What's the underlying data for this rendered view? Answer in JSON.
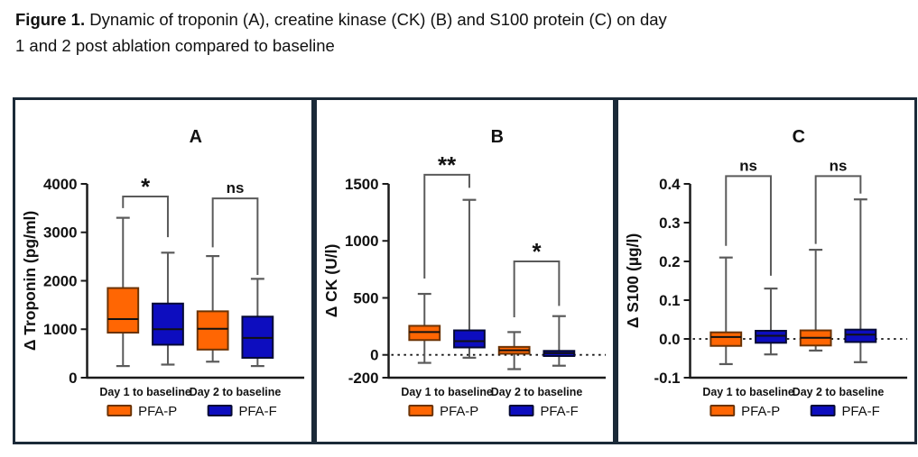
{
  "caption": {
    "bold": "Figure 1.",
    "line1_rest": " Dynamic of troponin (A), creatine kinase (CK) (B) and S100 protein (C) on day",
    "line2": "1 and 2 post ablation compared to baseline"
  },
  "legend": {
    "items": [
      {
        "label": "PFA-P",
        "fill": "#FF6603",
        "border": "#6b3305"
      },
      {
        "label": "PFA-F",
        "fill": "#0D0DBF",
        "border": "#060a34"
      }
    ]
  },
  "style": {
    "panel_border": "#1b2a38",
    "axis": "#1a1a1a",
    "whisker": "#5a5a5a",
    "bracket": "#5a5a5a",
    "median": "#111111",
    "zero_line": "#111111"
  },
  "chart_data": [
    {
      "type": "box",
      "panel_label": "A",
      "ylabel": "Δ Troponin (pg/ml)",
      "ylim": [
        0,
        4000
      ],
      "yticks": [
        {
          "v": 0,
          "label": "0"
        },
        {
          "v": 1000,
          "label": "1000"
        },
        {
          "v": 2000,
          "label": "2000"
        },
        {
          "v": 3000,
          "label": "3000"
        },
        {
          "v": 4000,
          "label": "4000"
        }
      ],
      "zero_line": false,
      "categories": [
        "Day 1 to baseline",
        "Day 2 to baseline"
      ],
      "series": [
        {
          "name": "PFA-P",
          "fill": "#FF6603",
          "border": "#6b3305",
          "boxes": [
            {
              "whislo": 240,
              "q1": 930,
              "med": 1210,
              "q3": 1850,
              "whishi": 3300
            },
            {
              "whislo": 330,
              "q1": 580,
              "med": 1010,
              "q3": 1370,
              "whishi": 2510
            }
          ]
        },
        {
          "name": "PFA-F",
          "fill": "#0D0DBF",
          "border": "#060a34",
          "boxes": [
            {
              "whislo": 270,
              "q1": 680,
              "med": 1000,
              "q3": 1530,
              "whishi": 2580
            },
            {
              "whislo": 240,
              "q1": 410,
              "med": 820,
              "q3": 1260,
              "whishi": 2040
            }
          ]
        }
      ],
      "significance": [
        {
          "category": 0,
          "label": "*",
          "top": 3740,
          "left_end": 3500,
          "right_end": 2900
        },
        {
          "category": 1,
          "label": "ns",
          "top": 3700,
          "left_end": 2690,
          "right_end": 2120
        }
      ]
    },
    {
      "type": "box",
      "panel_label": "B",
      "ylabel": "Δ CK (U/l)",
      "ylim": [
        -200,
        1500
      ],
      "yticks": [
        {
          "v": -200,
          "label": "-200"
        },
        {
          "v": 0,
          "label": "0"
        },
        {
          "v": 500,
          "label": "500"
        },
        {
          "v": 1000,
          "label": "1000"
        },
        {
          "v": 1500,
          "label": "1500"
        }
      ],
      "zero_line": true,
      "categories": [
        "Day 1 to baseline",
        "Day 2 to baseline"
      ],
      "series": [
        {
          "name": "PFA-P",
          "fill": "#FF6603",
          "border": "#6b3305",
          "boxes": [
            {
              "whislo": -70,
              "q1": 130,
              "med": 200,
              "q3": 255,
              "whishi": 535
            },
            {
              "whislo": -125,
              "q1": 10,
              "med": 40,
              "q3": 70,
              "whishi": 200
            }
          ]
        },
        {
          "name": "PFA-F",
          "fill": "#0D0DBF",
          "border": "#060a34",
          "boxes": [
            {
              "whislo": -25,
              "q1": 65,
              "med": 120,
              "q3": 215,
              "whishi": 1360
            },
            {
              "whislo": -95,
              "q1": -10,
              "med": 15,
              "q3": 35,
              "whishi": 340
            }
          ]
        }
      ],
      "significance": [
        {
          "category": 0,
          "label": "**",
          "top": 1580,
          "left_end": 670,
          "right_end": 1465
        },
        {
          "category": 1,
          "label": "*",
          "top": 820,
          "left_end": 330,
          "right_end": 430
        }
      ]
    },
    {
      "type": "box",
      "panel_label": "C",
      "ylabel": "Δ S100 (µg/l)",
      "ylim": [
        -0.1,
        0.4
      ],
      "yticks": [
        {
          "v": -0.1,
          "label": "-0.1"
        },
        {
          "v": 0,
          "label": "0.0"
        },
        {
          "v": 0.1,
          "label": "0.1"
        },
        {
          "v": 0.2,
          "label": "0.2"
        },
        {
          "v": 0.3,
          "label": "0.3"
        },
        {
          "v": 0.4,
          "label": "0.4"
        }
      ],
      "zero_line": true,
      "categories": [
        "Day 1 to baseline",
        "Day 2 to baseline"
      ],
      "series": [
        {
          "name": "PFA-P",
          "fill": "#FF6603",
          "border": "#6b3305",
          "boxes": [
            {
              "whislo": -0.065,
              "q1": -0.018,
              "med": 0.005,
              "q3": 0.017,
              "whishi": 0.21
            },
            {
              "whislo": -0.03,
              "q1": -0.017,
              "med": 0.003,
              "q3": 0.022,
              "whishi": 0.23
            }
          ]
        },
        {
          "name": "PFA-F",
          "fill": "#0D0DBF",
          "border": "#060a34",
          "boxes": [
            {
              "whislo": -0.04,
              "q1": -0.01,
              "med": 0.008,
              "q3": 0.021,
              "whishi": 0.13
            },
            {
              "whislo": -0.06,
              "q1": -0.008,
              "med": 0.011,
              "q3": 0.024,
              "whishi": 0.36
            }
          ]
        }
      ],
      "significance": [
        {
          "category": 0,
          "label": "ns",
          "top": 0.42,
          "left_end": 0.24,
          "right_end": 0.163
        },
        {
          "category": 1,
          "label": "ns",
          "top": 0.42,
          "left_end": 0.245,
          "right_end": 0.375
        }
      ]
    }
  ]
}
